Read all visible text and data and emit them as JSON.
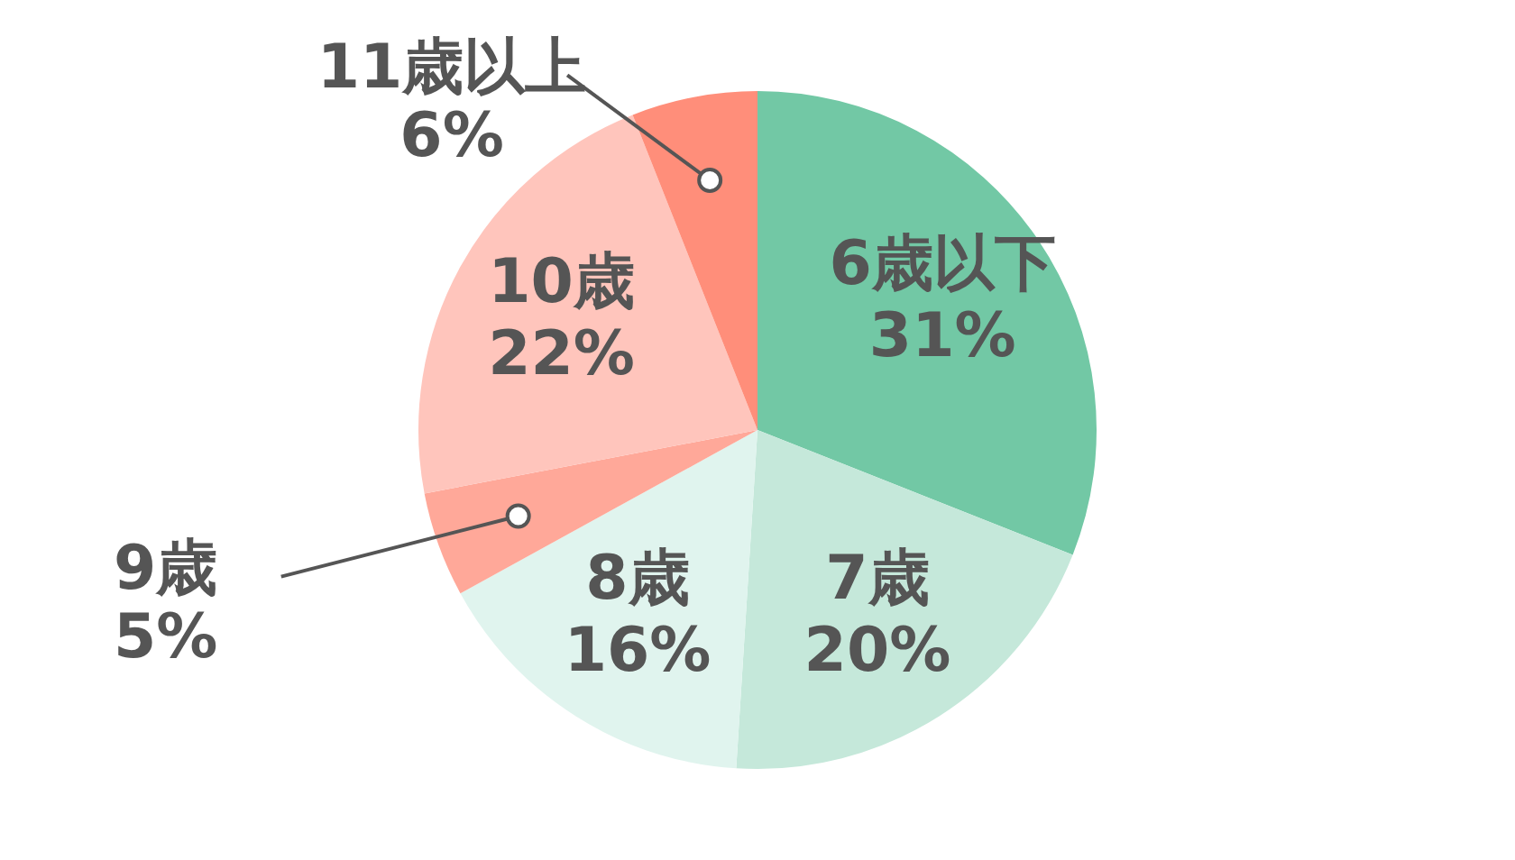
{
  "chart_data": {
    "type": "pie",
    "categories": [
      "6歳以下",
      "7歳",
      "8歳",
      "9歳",
      "10歳",
      "11歳以上"
    ],
    "values": [
      31,
      20,
      16,
      5,
      22,
      6
    ],
    "colors": [
      "#72c8a5",
      "#c5e8da",
      "#e0f4ee",
      "#ffa899",
      "#ffc5bc",
      "#ff8e7a"
    ],
    "value_labels": [
      "31%",
      "20%",
      "16%",
      "5%",
      "22%",
      "6%"
    ],
    "legend": false
  }
}
